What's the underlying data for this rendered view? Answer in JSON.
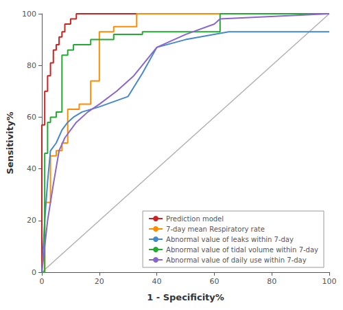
{
  "chart_data": {
    "type": "line",
    "xlabel": "1 - Specificity%",
    "ylabel": "Sensitivity%",
    "xlim": [
      0,
      100
    ],
    "ylim": [
      0,
      100
    ],
    "xticks": [
      0,
      20,
      40,
      60,
      80,
      100
    ],
    "yticks": [
      0,
      20,
      40,
      60,
      80,
      100
    ],
    "grid": false,
    "legend": "lower right",
    "series": [
      {
        "color": "#b0b0b0",
        "x": [
          0,
          100
        ],
        "values": [
          0,
          100
        ]
      },
      {
        "name": "Prediction model",
        "color": "#cc2222",
        "x": [
          0,
          0,
          1,
          1,
          2,
          2,
          3,
          3,
          4,
          4,
          5,
          5,
          6,
          6,
          7,
          7,
          8,
          8,
          10,
          10,
          12,
          12,
          14,
          14,
          100
        ],
        "values": [
          0,
          57,
          57,
          70,
          70,
          76,
          76,
          81,
          81,
          86,
          86,
          88,
          88,
          91,
          91,
          93,
          93,
          96,
          96,
          98,
          98,
          100,
          100,
          100,
          100
        ]
      },
      {
        "name": "7-day mean Respiratory rate",
        "color": "#ff8c00",
        "x": [
          0,
          1,
          1,
          3,
          3,
          5,
          5,
          7,
          7,
          9,
          9,
          13,
          13,
          17,
          17,
          20,
          20,
          25,
          25,
          33,
          33,
          100
        ],
        "values": [
          0,
          0,
          27,
          27,
          45,
          45,
          47,
          47,
          50,
          50,
          63,
          63,
          65,
          65,
          74,
          74,
          93,
          93,
          95,
          95,
          100,
          100
        ]
      },
      {
        "name": "Abnormal value of leaks within 7-day",
        "color": "#4488cc",
        "x": [
          0,
          1,
          2,
          3,
          5,
          7,
          9,
          11,
          14,
          17,
          20,
          25,
          30,
          35,
          40,
          50,
          60,
          65,
          100
        ],
        "values": [
          0,
          20,
          35,
          47,
          50,
          55,
          58,
          60,
          62,
          63,
          64,
          66,
          68,
          77,
          87,
          90,
          92,
          93,
          93
        ]
      },
      {
        "name": "Abnormal value of tidal volume within 7-day",
        "color": "#22aa33",
        "x": [
          0,
          1,
          1,
          2,
          2,
          3,
          3,
          5,
          5,
          7,
          7,
          9,
          9,
          11,
          11,
          17,
          17,
          25,
          25,
          35,
          35,
          62,
          62,
          100
        ],
        "values": [
          0,
          0,
          46,
          46,
          58,
          58,
          60,
          60,
          62,
          62,
          84,
          84,
          86,
          86,
          88,
          88,
          90,
          90,
          92,
          92,
          93,
          93,
          100,
          100
        ]
      },
      {
        "name": "Abnormal value of daily use within 7-day",
        "color": "#8866cc",
        "x": [
          0,
          2,
          4,
          6,
          8,
          12,
          16,
          20,
          26,
          32,
          40,
          50,
          60,
          62,
          100
        ],
        "values": [
          0,
          20,
          34,
          47,
          52,
          58,
          62,
          65,
          70,
          76,
          87,
          92,
          96,
          98,
          100
        ]
      }
    ]
  }
}
